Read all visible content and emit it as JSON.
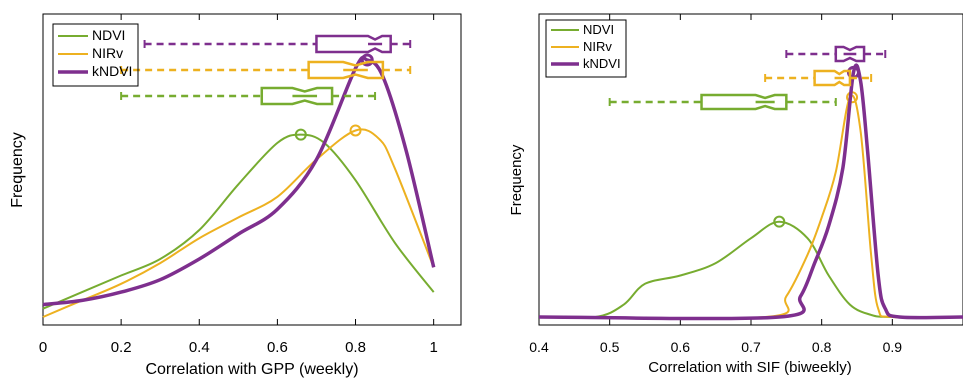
{
  "chart_data": [
    {
      "type": "line",
      "xlabel": "Correlation with GPP (weekly)",
      "ylabel": "Frequency",
      "xlim": [
        0,
        1.07
      ],
      "ylim": [
        0,
        1
      ],
      "xticks": [
        0,
        0.2,
        0.4,
        0.6,
        0.8,
        1
      ],
      "xtick_labels": [
        "0",
        "0.2",
        "0.4",
        "0.6",
        "0.8",
        "1"
      ],
      "legend_position": "top-left",
      "series": [
        {
          "name": "NDVI",
          "color": "#77ac30",
          "width": 2,
          "x": [
            0,
            0.1,
            0.2,
            0.3,
            0.4,
            0.5,
            0.6,
            0.66,
            0.72,
            0.8,
            0.9,
            1.0
          ],
          "y": [
            0.02,
            0.06,
            0.1,
            0.14,
            0.21,
            0.32,
            0.42,
            0.44,
            0.42,
            0.33,
            0.18,
            0.06
          ],
          "peak": [
            0.66,
            0.44
          ]
        },
        {
          "name": "NIRv",
          "color": "#edb120",
          "width": 2,
          "x": [
            0,
            0.1,
            0.2,
            0.3,
            0.4,
            0.5,
            0.6,
            0.7,
            0.8,
            0.86,
            0.9,
            1.0
          ],
          "y": [
            0.0,
            0.04,
            0.08,
            0.13,
            0.19,
            0.24,
            0.29,
            0.38,
            0.45,
            0.43,
            0.36,
            0.12
          ],
          "peak": [
            0.8,
            0.45
          ]
        },
        {
          "name": "kNDVI",
          "color": "#7e2f8e",
          "width": 3.5,
          "x": [
            0,
            0.1,
            0.2,
            0.3,
            0.4,
            0.5,
            0.6,
            0.7,
            0.8,
            0.83,
            0.87,
            0.93,
            1.0
          ],
          "y": [
            0.03,
            0.04,
            0.06,
            0.09,
            0.14,
            0.2,
            0.26,
            0.38,
            0.6,
            0.62,
            0.58,
            0.4,
            0.12
          ],
          "peak": [
            0.83,
            0.62
          ]
        }
      ],
      "boxplots": [
        {
          "name": "kNDVI",
          "color": "#7e2f8e",
          "whisker_low": 0.26,
          "q1": 0.7,
          "median": 0.85,
          "q3": 0.89,
          "whisker_high": 0.94
        },
        {
          "name": "NIRv",
          "color": "#edb120",
          "whisker_low": 0.2,
          "q1": 0.68,
          "median": 0.8,
          "q3": 0.87,
          "whisker_high": 0.94
        },
        {
          "name": "NDVI",
          "color": "#77ac30",
          "whisker_low": 0.2,
          "q1": 0.56,
          "median": 0.67,
          "q3": 0.74,
          "whisker_high": 0.85
        }
      ]
    },
    {
      "type": "line",
      "xlabel": "Correlation with SIF (biweekly)",
      "ylabel": "Frequency",
      "xlim": [
        0.4,
        1.0
      ],
      "ylim": [
        0,
        1
      ],
      "xticks": [
        0.4,
        0.5,
        0.6,
        0.7,
        0.8,
        0.9
      ],
      "xtick_labels": [
        "0.4",
        "0.5",
        "0.6",
        "0.7",
        "0.8",
        "0.9"
      ],
      "legend_position": "top-left",
      "series": [
        {
          "name": "NDVI",
          "color": "#77ac30",
          "width": 2,
          "x": [
            0.4,
            0.48,
            0.52,
            0.55,
            0.6,
            0.65,
            0.7,
            0.74,
            0.78,
            0.81,
            0.84,
            0.87,
            0.9,
            1.0
          ],
          "y": [
            0,
            0,
            0.03,
            0.08,
            0.1,
            0.13,
            0.19,
            0.23,
            0.19,
            0.1,
            0.03,
            0.005,
            0,
            0
          ],
          "peak": [
            0.74,
            0.23
          ]
        },
        {
          "name": "NIRv",
          "color": "#edb120",
          "width": 2,
          "x": [
            0.4,
            0.72,
            0.75,
            0.78,
            0.8,
            0.82,
            0.84,
            0.855,
            0.87,
            0.88,
            0.9,
            1.0
          ],
          "y": [
            0,
            0,
            0.05,
            0.15,
            0.24,
            0.35,
            0.53,
            0.45,
            0.15,
            0.02,
            0,
            0
          ],
          "peak": [
            0.843,
            0.53
          ]
        },
        {
          "name": "kNDVI",
          "color": "#7e2f8e",
          "width": 3.5,
          "x": [
            0.4,
            0.74,
            0.77,
            0.79,
            0.81,
            0.83,
            0.845,
            0.855,
            0.865,
            0.88,
            0.89,
            0.91,
            1.0
          ],
          "y": [
            0,
            0,
            0.05,
            0.13,
            0.22,
            0.36,
            0.59,
            0.57,
            0.4,
            0.1,
            0.02,
            0,
            0
          ],
          "peak": [
            0.845,
            0.59
          ]
        }
      ],
      "boxplots": [
        {
          "name": "kNDVI",
          "color": "#7e2f8e",
          "whisker_low": 0.75,
          "q1": 0.82,
          "median": 0.84,
          "q3": 0.86,
          "whisker_high": 0.89
        },
        {
          "name": "NIRv",
          "color": "#edb120",
          "whisker_low": 0.72,
          "q1": 0.79,
          "median": 0.825,
          "q3": 0.84,
          "whisker_high": 0.87
        },
        {
          "name": "NDVI",
          "color": "#77ac30",
          "whisker_low": 0.5,
          "q1": 0.63,
          "median": 0.72,
          "q3": 0.75,
          "whisker_high": 0.82
        }
      ]
    }
  ]
}
